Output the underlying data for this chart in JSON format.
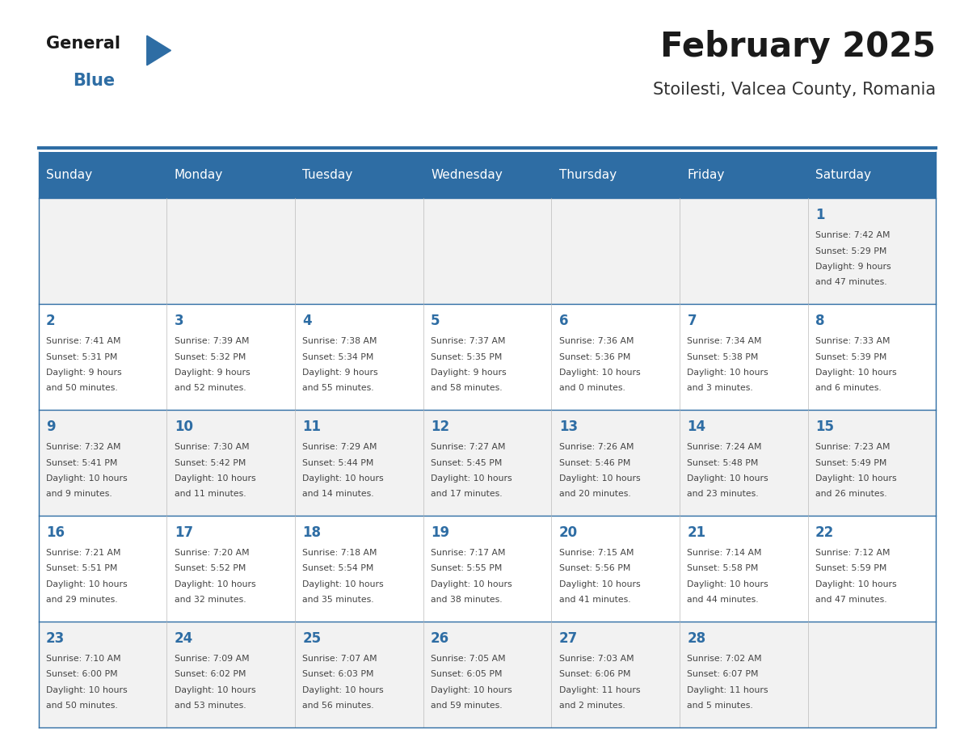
{
  "title": "February 2025",
  "subtitle": "Stoilesti, Valcea County, Romania",
  "header_bg": "#2E6DA4",
  "header_text_color": "#FFFFFF",
  "cell_bg_light": "#F2F2F2",
  "cell_bg_white": "#FFFFFF",
  "day_number_color": "#2E6DA4",
  "info_text_color": "#444444",
  "border_color": "#2E6DA4",
  "days_of_week": [
    "Sunday",
    "Monday",
    "Tuesday",
    "Wednesday",
    "Thursday",
    "Friday",
    "Saturday"
  ],
  "logo_text1": "General",
  "logo_text2": "Blue",
  "logo_color1": "#1a1a1a",
  "logo_color2": "#2E6DA4",
  "calendar_data": [
    [
      null,
      null,
      null,
      null,
      null,
      null,
      {
        "day": 1,
        "sunrise": "7:42 AM",
        "sunset": "5:29 PM",
        "daylight_line1": "9 hours",
        "daylight_line2": "and 47 minutes."
      }
    ],
    [
      {
        "day": 2,
        "sunrise": "7:41 AM",
        "sunset": "5:31 PM",
        "daylight_line1": "9 hours",
        "daylight_line2": "and 50 minutes."
      },
      {
        "day": 3,
        "sunrise": "7:39 AM",
        "sunset": "5:32 PM",
        "daylight_line1": "9 hours",
        "daylight_line2": "and 52 minutes."
      },
      {
        "day": 4,
        "sunrise": "7:38 AM",
        "sunset": "5:34 PM",
        "daylight_line1": "9 hours",
        "daylight_line2": "and 55 minutes."
      },
      {
        "day": 5,
        "sunrise": "7:37 AM",
        "sunset": "5:35 PM",
        "daylight_line1": "9 hours",
        "daylight_line2": "and 58 minutes."
      },
      {
        "day": 6,
        "sunrise": "7:36 AM",
        "sunset": "5:36 PM",
        "daylight_line1": "10 hours",
        "daylight_line2": "and 0 minutes."
      },
      {
        "day": 7,
        "sunrise": "7:34 AM",
        "sunset": "5:38 PM",
        "daylight_line1": "10 hours",
        "daylight_line2": "and 3 minutes."
      },
      {
        "day": 8,
        "sunrise": "7:33 AM",
        "sunset": "5:39 PM",
        "daylight_line1": "10 hours",
        "daylight_line2": "and 6 minutes."
      }
    ],
    [
      {
        "day": 9,
        "sunrise": "7:32 AM",
        "sunset": "5:41 PM",
        "daylight_line1": "10 hours",
        "daylight_line2": "and 9 minutes."
      },
      {
        "day": 10,
        "sunrise": "7:30 AM",
        "sunset": "5:42 PM",
        "daylight_line1": "10 hours",
        "daylight_line2": "and 11 minutes."
      },
      {
        "day": 11,
        "sunrise": "7:29 AM",
        "sunset": "5:44 PM",
        "daylight_line1": "10 hours",
        "daylight_line2": "and 14 minutes."
      },
      {
        "day": 12,
        "sunrise": "7:27 AM",
        "sunset": "5:45 PM",
        "daylight_line1": "10 hours",
        "daylight_line2": "and 17 minutes."
      },
      {
        "day": 13,
        "sunrise": "7:26 AM",
        "sunset": "5:46 PM",
        "daylight_line1": "10 hours",
        "daylight_line2": "and 20 minutes."
      },
      {
        "day": 14,
        "sunrise": "7:24 AM",
        "sunset": "5:48 PM",
        "daylight_line1": "10 hours",
        "daylight_line2": "and 23 minutes."
      },
      {
        "day": 15,
        "sunrise": "7:23 AM",
        "sunset": "5:49 PM",
        "daylight_line1": "10 hours",
        "daylight_line2": "and 26 minutes."
      }
    ],
    [
      {
        "day": 16,
        "sunrise": "7:21 AM",
        "sunset": "5:51 PM",
        "daylight_line1": "10 hours",
        "daylight_line2": "and 29 minutes."
      },
      {
        "day": 17,
        "sunrise": "7:20 AM",
        "sunset": "5:52 PM",
        "daylight_line1": "10 hours",
        "daylight_line2": "and 32 minutes."
      },
      {
        "day": 18,
        "sunrise": "7:18 AM",
        "sunset": "5:54 PM",
        "daylight_line1": "10 hours",
        "daylight_line2": "and 35 minutes."
      },
      {
        "day": 19,
        "sunrise": "7:17 AM",
        "sunset": "5:55 PM",
        "daylight_line1": "10 hours",
        "daylight_line2": "and 38 minutes."
      },
      {
        "day": 20,
        "sunrise": "7:15 AM",
        "sunset": "5:56 PM",
        "daylight_line1": "10 hours",
        "daylight_line2": "and 41 minutes."
      },
      {
        "day": 21,
        "sunrise": "7:14 AM",
        "sunset": "5:58 PM",
        "daylight_line1": "10 hours",
        "daylight_line2": "and 44 minutes."
      },
      {
        "day": 22,
        "sunrise": "7:12 AM",
        "sunset": "5:59 PM",
        "daylight_line1": "10 hours",
        "daylight_line2": "and 47 minutes."
      }
    ],
    [
      {
        "day": 23,
        "sunrise": "7:10 AM",
        "sunset": "6:00 PM",
        "daylight_line1": "10 hours",
        "daylight_line2": "and 50 minutes."
      },
      {
        "day": 24,
        "sunrise": "7:09 AM",
        "sunset": "6:02 PM",
        "daylight_line1": "10 hours",
        "daylight_line2": "and 53 minutes."
      },
      {
        "day": 25,
        "sunrise": "7:07 AM",
        "sunset": "6:03 PM",
        "daylight_line1": "10 hours",
        "daylight_line2": "and 56 minutes."
      },
      {
        "day": 26,
        "sunrise": "7:05 AM",
        "sunset": "6:05 PM",
        "daylight_line1": "10 hours",
        "daylight_line2": "and 59 minutes."
      },
      {
        "day": 27,
        "sunrise": "7:03 AM",
        "sunset": "6:06 PM",
        "daylight_line1": "11 hours",
        "daylight_line2": "and 2 minutes."
      },
      {
        "day": 28,
        "sunrise": "7:02 AM",
        "sunset": "6:07 PM",
        "daylight_line1": "11 hours",
        "daylight_line2": "and 5 minutes."
      },
      null
    ]
  ]
}
